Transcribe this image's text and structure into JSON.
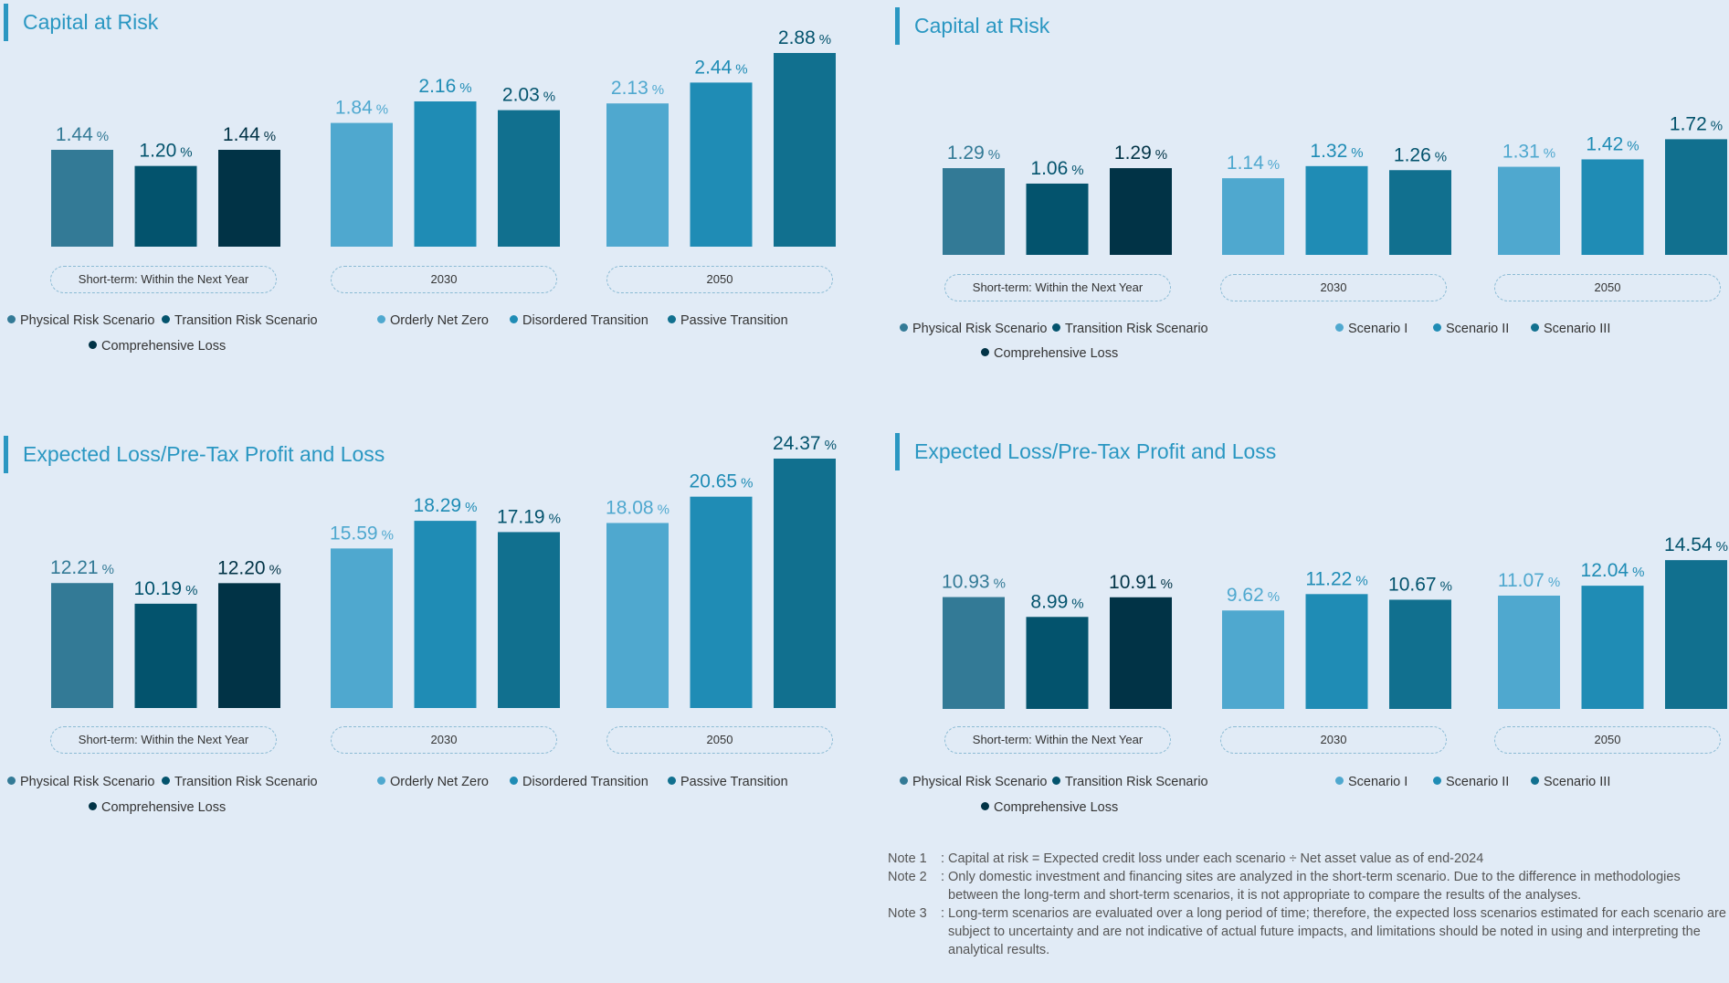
{
  "colors": {
    "title": "#2a97c2",
    "physical": "#337a96",
    "transition": "#03536d",
    "comprehensive": "#013346",
    "light": "#4fa8cf",
    "mid": "#1f8cb5",
    "dark": "#11708f"
  },
  "chart_data": [
    {
      "type": "bar",
      "title": "Capital at Risk",
      "unit": "%",
      "groups": [
        "Short-term: Within the Next Year",
        "2030",
        "2050"
      ],
      "values": [
        [
          1.44,
          1.2,
          1.44
        ],
        [
          1.84,
          2.16,
          2.03
        ],
        [
          2.13,
          2.44,
          2.88
        ]
      ],
      "labels": [
        [
          "1.44",
          "1.20",
          "1.44"
        ],
        [
          "1.84",
          "2.16",
          "2.03"
        ],
        [
          "2.13",
          "2.44",
          "2.88"
        ]
      ],
      "legend": [
        "Physical Risk Scenario",
        "Transition Risk Scenario",
        "Comprehensive Loss",
        "Orderly Net Zero",
        "Disordered Transition",
        "Passive Transition"
      ],
      "ylim": [
        0,
        2.88
      ]
    },
    {
      "type": "bar",
      "title": "Capital at Risk",
      "unit": "%",
      "groups": [
        "Short-term: Within the Next Year",
        "2030",
        "2050"
      ],
      "values": [
        [
          1.29,
          1.06,
          1.29
        ],
        [
          1.14,
          1.32,
          1.26
        ],
        [
          1.31,
          1.42,
          1.72
        ]
      ],
      "labels": [
        [
          "1.29",
          "1.06",
          "1.29"
        ],
        [
          "1.14",
          "1.32",
          "1.26"
        ],
        [
          "1.31",
          "1.42",
          "1.72"
        ]
      ],
      "legend": [
        "Physical Risk Scenario",
        "Transition Risk Scenario",
        "Comprehensive Loss",
        "Scenario I",
        "Scenario II",
        "Scenario III"
      ],
      "ylim": [
        0,
        2.88
      ]
    },
    {
      "type": "bar",
      "title": "Expected Loss/Pre-Tax Profit and Loss",
      "unit": "%",
      "groups": [
        "Short-term: Within the Next Year",
        "2030",
        "2050"
      ],
      "values": [
        [
          12.21,
          10.19,
          12.2
        ],
        [
          15.59,
          18.29,
          17.19
        ],
        [
          18.08,
          20.65,
          24.37
        ]
      ],
      "labels": [
        [
          "12.21",
          "10.19",
          "12.20"
        ],
        [
          "15.59",
          "18.29",
          "17.19"
        ],
        [
          "18.08",
          "20.65",
          "24.37"
        ]
      ],
      "legend": [
        "Physical Risk Scenario",
        "Transition Risk Scenario",
        "Comprehensive Loss",
        "Orderly Net Zero",
        "Disordered Transition",
        "Passive Transition"
      ],
      "ylim": [
        0,
        24.37
      ]
    },
    {
      "type": "bar",
      "title": "Expected Loss/Pre-Tax Profit and Loss",
      "unit": "%",
      "groups": [
        "Short-term: Within the Next Year",
        "2030",
        "2050"
      ],
      "values": [
        [
          10.93,
          8.99,
          10.91
        ],
        [
          9.62,
          11.22,
          10.67
        ],
        [
          11.07,
          12.04,
          14.54
        ]
      ],
      "labels": [
        [
          "10.93",
          "8.99",
          "10.91"
        ],
        [
          "9.62",
          "11.22",
          "10.67"
        ],
        [
          "11.07",
          "12.04",
          "14.54"
        ]
      ],
      "legend": [
        "Physical Risk Scenario",
        "Transition Risk Scenario",
        "Comprehensive Loss",
        "Scenario I",
        "Scenario II",
        "Scenario III"
      ],
      "ylim": [
        0,
        24.37
      ]
    }
  ],
  "notes": [
    {
      "label": "Note 1",
      "text": "Capital at risk = Expected credit loss under each scenario ÷ Net asset value as of end-2024"
    },
    {
      "label": "Note 2",
      "text": "Only domestic investment and financing sites are analyzed in the short-term scenario. Due to the difference in methodologies between the long-term and short-term scenarios, it is not appropriate to compare the results of the analyses."
    },
    {
      "label": "Note 3",
      "text": "Long-term scenarios are evaluated over a long period of time; therefore, the expected loss scenarios estimated for each scenario are subject to uncertainty and are not indicative of actual future impacts, and limitations should be noted in using and interpreting the analytical results."
    }
  ]
}
